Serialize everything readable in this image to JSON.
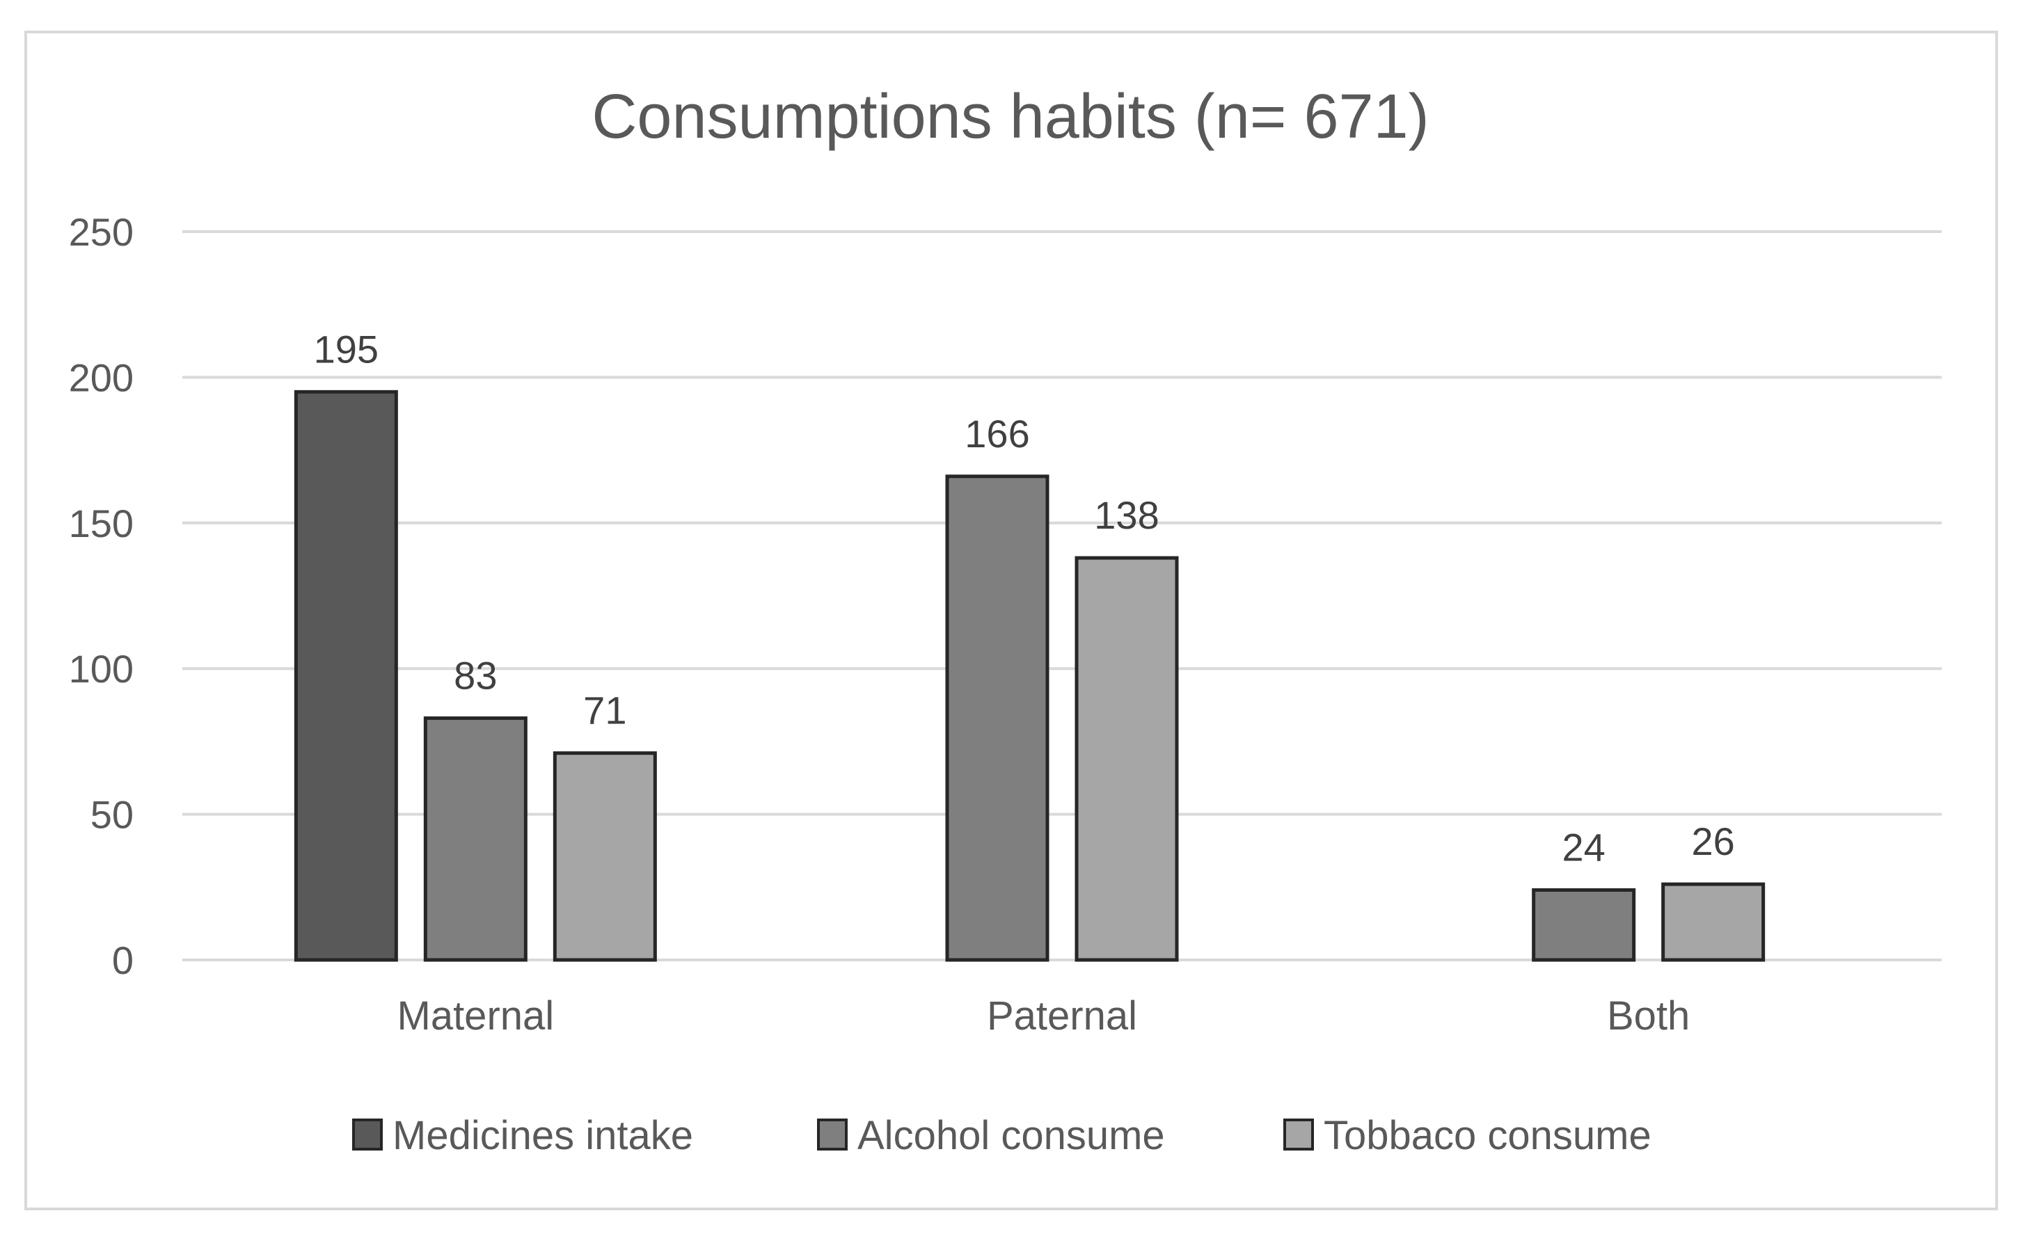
{
  "chart_data": {
    "type": "bar",
    "title": "Consumptions habits (n= 671)",
    "categories": [
      "Maternal",
      "Paternal",
      "Both"
    ],
    "ylim": [
      0,
      250
    ],
    "yticks": [
      0,
      50,
      100,
      150,
      200,
      250
    ],
    "grid": true,
    "legend_position": "bottom",
    "xlabel": "",
    "ylabel": "",
    "series": [
      {
        "name": "Medicines intake",
        "values": [
          195,
          null,
          null
        ],
        "color": "#595959"
      },
      {
        "name": "Alcohol consume",
        "values": [
          83,
          166,
          24
        ],
        "color": "#7f7f7f"
      },
      {
        "name": "Tobbaco consume",
        "values": [
          71,
          138,
          26
        ],
        "color": "#a6a6a6"
      }
    ]
  }
}
